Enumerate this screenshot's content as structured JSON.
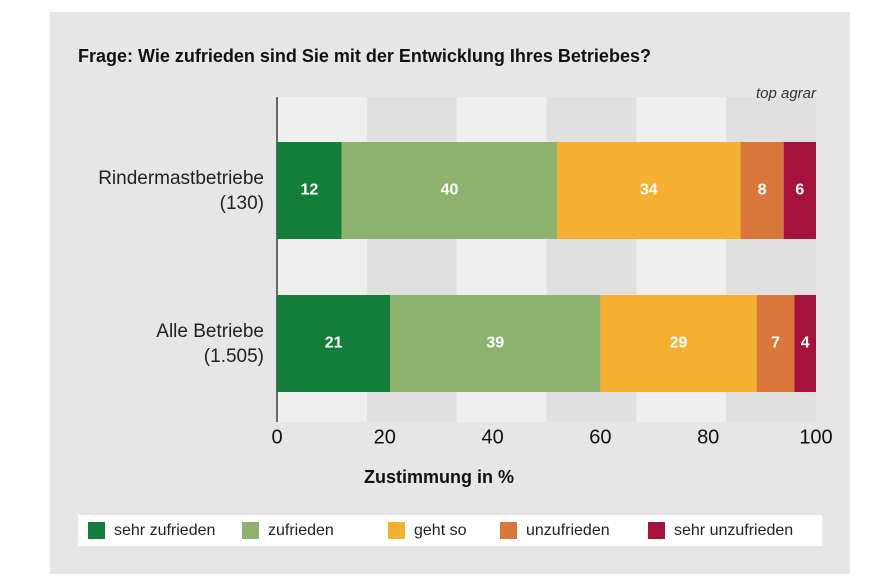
{
  "chart_data": {
    "type": "stacked-barh",
    "title": "Frage: Wie zufrieden sind Sie mit der Entwicklung Ihres Betriebes?",
    "source": "top agrar",
    "xlabel": "Zustimmung in %",
    "categories": [
      "Rindermastbetriebe\n(130)",
      "Alle Betriebe\n(1.505)"
    ],
    "series": [
      {
        "name": "sehr zufrieden",
        "color": "#137d3a",
        "values": [
          12,
          21
        ]
      },
      {
        "name": "zufrieden",
        "color": "#8db26e",
        "values": [
          40,
          39
        ]
      },
      {
        "name": "geht so",
        "color": "#f6b031",
        "values": [
          34,
          29
        ]
      },
      {
        "name": "unzufrieden",
        "color": "#d9773a",
        "values": [
          8,
          7
        ]
      },
      {
        "name": "sehr unzufrieden",
        "color": "#a5123c",
        "values": [
          6,
          4
        ]
      }
    ],
    "xlim": [
      0,
      100
    ],
    "xticks": [
      0,
      20,
      40,
      60,
      80,
      100
    ],
    "legend": "bottom"
  }
}
